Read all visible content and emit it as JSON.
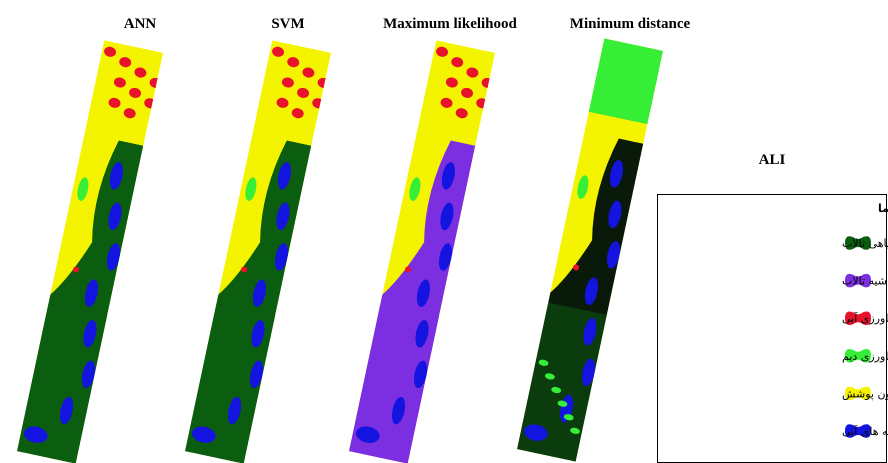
{
  "panels": [
    {
      "title": "ANN"
    },
    {
      "title": "SVM"
    },
    {
      "title": "Maximum likelihood"
    },
    {
      "title": "Minimum distance"
    }
  ],
  "sensor": "ALI",
  "legend": {
    "title": "راهنما",
    "items": [
      {
        "label": "پوشش های گیاهی تالاب",
        "color": "#0b5d10"
      },
      {
        "label": "پوشش های گیاهی حاشیه تالاب",
        "color": "#7b2fe0"
      },
      {
        "label": "اراضی کشاورزی آبی",
        "color": "#e8122a"
      },
      {
        "label": "اراضی کشاورزی دیم",
        "color": "#35ee35"
      },
      {
        "label": "خاک بدون پوشش",
        "color": "#f4f400"
      },
      {
        "label": "پهنه های آبی",
        "color": "#1414e0"
      }
    ]
  }
}
